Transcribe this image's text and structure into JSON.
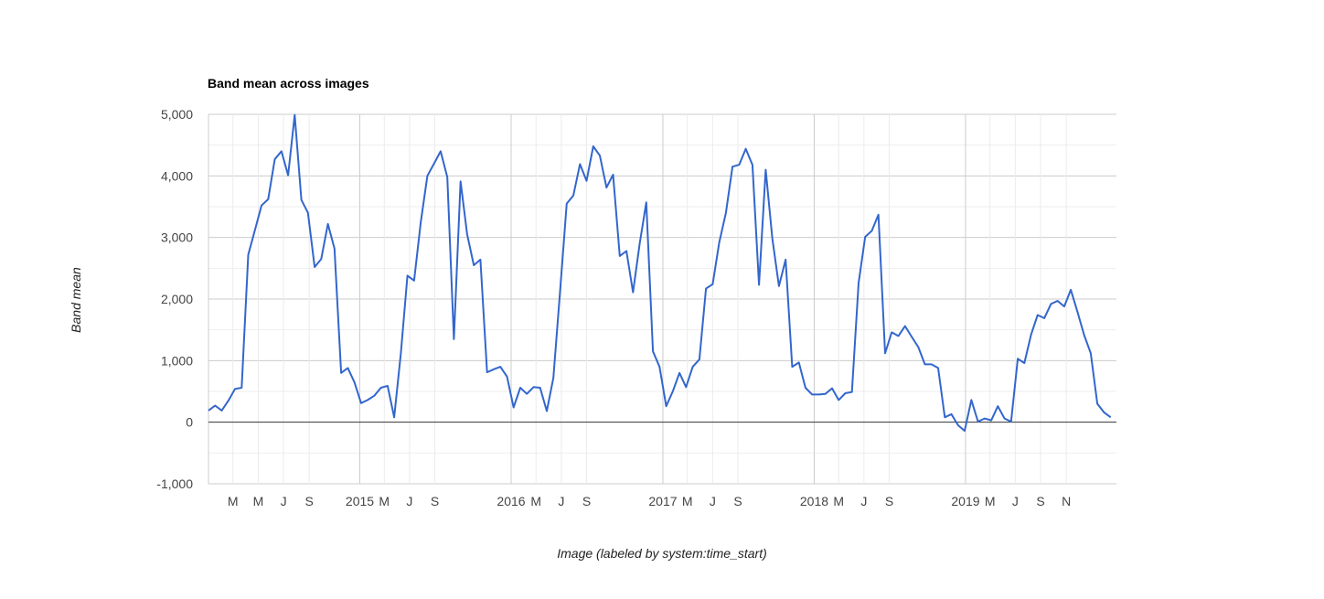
{
  "chart_data": {
    "type": "line",
    "title": "Band mean across images",
    "xlabel": "Image (labeled by system:time_start)",
    "ylabel": "Band mean",
    "ylim": [
      -1000,
      5000
    ],
    "xlim": [
      "2014-01-01",
      "2019-12-31"
    ],
    "grid": true,
    "legend": "none",
    "line_color": "#3366cc",
    "y_ticks": [
      {
        "value": 5000,
        "label": "5,000"
      },
      {
        "value": 4000,
        "label": "4,000"
      },
      {
        "value": 3000,
        "label": "3,000"
      },
      {
        "value": 2000,
        "label": "2,000"
      },
      {
        "value": 1000,
        "label": "1,000"
      },
      {
        "value": 0,
        "label": "0"
      },
      {
        "value": -1000,
        "label": "-1,000"
      }
    ],
    "x_ticks": [
      {
        "date": "2014-03-01",
        "label": "M",
        "major": false
      },
      {
        "date": "2014-05-01",
        "label": "M",
        "major": false
      },
      {
        "date": "2014-07-01",
        "label": "J",
        "major": false
      },
      {
        "date": "2014-09-01",
        "label": "S",
        "major": false
      },
      {
        "date": "2015-01-01",
        "label": "2015",
        "major": true
      },
      {
        "date": "2015-03-01",
        "label": "M",
        "major": false
      },
      {
        "date": "2015-05-01",
        "label": "J",
        "major": false
      },
      {
        "date": "2015-07-01",
        "label": "S",
        "major": false
      },
      {
        "date": "2016-01-01",
        "label": "2016",
        "major": true
      },
      {
        "date": "2016-03-01",
        "label": "M",
        "major": false
      },
      {
        "date": "2016-05-01",
        "label": "J",
        "major": false
      },
      {
        "date": "2016-07-01",
        "label": "S",
        "major": false
      },
      {
        "date": "2017-01-01",
        "label": "2017",
        "major": true
      },
      {
        "date": "2017-03-01",
        "label": "M",
        "major": false
      },
      {
        "date": "2017-05-01",
        "label": "J",
        "major": false
      },
      {
        "date": "2017-07-01",
        "label": "S",
        "major": false
      },
      {
        "date": "2018-01-01",
        "label": "2018",
        "major": true
      },
      {
        "date": "2018-03-01",
        "label": "M",
        "major": false
      },
      {
        "date": "2018-05-01",
        "label": "J",
        "major": false
      },
      {
        "date": "2018-07-01",
        "label": "S",
        "major": false
      },
      {
        "date": "2019-01-01",
        "label": "2019",
        "major": true
      },
      {
        "date": "2019-03-01",
        "label": "M",
        "major": false
      },
      {
        "date": "2019-05-01",
        "label": "J",
        "major": false
      },
      {
        "date": "2019-07-01",
        "label": "S",
        "major": false
      },
      {
        "date": "2019-09-01",
        "label": "N",
        "major": false
      }
    ],
    "series": [
      {
        "points": [
          [
            "2014-01-01",
            190
          ],
          [
            "2014-01-17",
            270
          ],
          [
            "2014-02-02",
            190
          ],
          [
            "2014-02-18",
            350
          ],
          [
            "2014-03-06",
            540
          ],
          [
            "2014-03-22",
            560
          ],
          [
            "2014-04-07",
            2720
          ],
          [
            "2014-04-23",
            3120
          ],
          [
            "2014-05-09",
            3520
          ],
          [
            "2014-05-25",
            3620
          ],
          [
            "2014-06-10",
            4270
          ],
          [
            "2014-06-26",
            4400
          ],
          [
            "2014-07-12",
            4010
          ],
          [
            "2014-07-28",
            4990
          ],
          [
            "2014-08-13",
            3610
          ],
          [
            "2014-08-29",
            3400
          ],
          [
            "2014-09-14",
            2520
          ],
          [
            "2014-09-30",
            2650
          ],
          [
            "2014-10-16",
            3220
          ],
          [
            "2014-11-01",
            2820
          ],
          [
            "2014-11-17",
            800
          ],
          [
            "2014-12-03",
            880
          ],
          [
            "2014-12-19",
            650
          ],
          [
            "2015-01-04",
            310
          ],
          [
            "2015-01-20",
            360
          ],
          [
            "2015-02-05",
            430
          ],
          [
            "2015-02-21",
            560
          ],
          [
            "2015-03-09",
            590
          ],
          [
            "2015-03-25",
            80
          ],
          [
            "2015-04-10",
            1120
          ],
          [
            "2015-04-26",
            2380
          ],
          [
            "2015-05-12",
            2300
          ],
          [
            "2015-05-28",
            3250
          ],
          [
            "2015-06-13",
            4000
          ],
          [
            "2015-06-29",
            4200
          ],
          [
            "2015-07-15",
            4400
          ],
          [
            "2015-07-31",
            3980
          ],
          [
            "2015-08-16",
            1350
          ],
          [
            "2015-09-01",
            3910
          ],
          [
            "2015-09-17",
            3050
          ],
          [
            "2015-10-03",
            2550
          ],
          [
            "2015-10-19",
            2640
          ],
          [
            "2015-11-04",
            810
          ],
          [
            "2015-11-20",
            860
          ],
          [
            "2015-12-06",
            900
          ],
          [
            "2015-12-22",
            740
          ],
          [
            "2016-01-07",
            240
          ],
          [
            "2016-01-23",
            560
          ],
          [
            "2016-02-08",
            460
          ],
          [
            "2016-02-24",
            570
          ],
          [
            "2016-03-11",
            560
          ],
          [
            "2016-03-27",
            180
          ],
          [
            "2016-04-12",
            720
          ],
          [
            "2016-04-28",
            2120
          ],
          [
            "2016-05-14",
            3550
          ],
          [
            "2016-05-30",
            3680
          ],
          [
            "2016-06-15",
            4190
          ],
          [
            "2016-07-01",
            3920
          ],
          [
            "2016-07-17",
            4480
          ],
          [
            "2016-08-02",
            4330
          ],
          [
            "2016-08-18",
            3810
          ],
          [
            "2016-09-03",
            4020
          ],
          [
            "2016-09-19",
            2700
          ],
          [
            "2016-10-05",
            2780
          ],
          [
            "2016-10-21",
            2110
          ],
          [
            "2016-11-06",
            2900
          ],
          [
            "2016-11-22",
            3570
          ],
          [
            "2016-12-08",
            1150
          ],
          [
            "2016-12-24",
            900
          ],
          [
            "2017-01-09",
            260
          ],
          [
            "2017-01-25",
            500
          ],
          [
            "2017-02-10",
            800
          ],
          [
            "2017-02-26",
            570
          ],
          [
            "2017-03-14",
            900
          ],
          [
            "2017-03-30",
            1020
          ],
          [
            "2017-04-15",
            2170
          ],
          [
            "2017-05-01",
            2240
          ],
          [
            "2017-05-17",
            2920
          ],
          [
            "2017-06-02",
            3400
          ],
          [
            "2017-06-18",
            4150
          ],
          [
            "2017-07-04",
            4180
          ],
          [
            "2017-07-20",
            4440
          ],
          [
            "2017-08-05",
            4180
          ],
          [
            "2017-08-21",
            2230
          ],
          [
            "2017-09-06",
            4100
          ],
          [
            "2017-09-22",
            2980
          ],
          [
            "2017-10-08",
            2210
          ],
          [
            "2017-10-24",
            2640
          ],
          [
            "2017-11-09",
            900
          ],
          [
            "2017-11-25",
            970
          ],
          [
            "2017-12-11",
            560
          ],
          [
            "2017-12-27",
            450
          ],
          [
            "2018-01-12",
            450
          ],
          [
            "2018-01-28",
            460
          ],
          [
            "2018-02-13",
            550
          ],
          [
            "2018-03-01",
            360
          ],
          [
            "2018-03-17",
            470
          ],
          [
            "2018-04-02",
            490
          ],
          [
            "2018-04-18",
            2260
          ],
          [
            "2018-05-04",
            3010
          ],
          [
            "2018-05-20",
            3110
          ],
          [
            "2018-06-05",
            3370
          ],
          [
            "2018-06-21",
            1120
          ],
          [
            "2018-07-07",
            1460
          ],
          [
            "2018-07-23",
            1400
          ],
          [
            "2018-08-08",
            1560
          ],
          [
            "2018-08-24",
            1390
          ],
          [
            "2018-09-09",
            1220
          ],
          [
            "2018-09-25",
            940
          ],
          [
            "2018-10-11",
            940
          ],
          [
            "2018-10-27",
            880
          ],
          [
            "2018-11-12",
            80
          ],
          [
            "2018-11-28",
            130
          ],
          [
            "2018-12-14",
            -50
          ],
          [
            "2018-12-30",
            -140
          ],
          [
            "2019-01-15",
            360
          ],
          [
            "2019-01-31",
            10
          ],
          [
            "2019-02-16",
            60
          ],
          [
            "2019-03-04",
            30
          ],
          [
            "2019-03-20",
            260
          ],
          [
            "2019-04-05",
            60
          ],
          [
            "2019-04-21",
            10
          ],
          [
            "2019-05-07",
            1030
          ],
          [
            "2019-05-23",
            960
          ],
          [
            "2019-06-08",
            1420
          ],
          [
            "2019-06-24",
            1740
          ],
          [
            "2019-07-10",
            1690
          ],
          [
            "2019-07-26",
            1920
          ],
          [
            "2019-08-11",
            1970
          ],
          [
            "2019-08-27",
            1880
          ],
          [
            "2019-09-12",
            2150
          ],
          [
            "2019-09-28",
            1790
          ],
          [
            "2019-10-14",
            1420
          ],
          [
            "2019-10-30",
            1120
          ],
          [
            "2019-11-15",
            300
          ],
          [
            "2019-12-01",
            160
          ],
          [
            "2019-12-17",
            80
          ]
        ]
      }
    ]
  }
}
